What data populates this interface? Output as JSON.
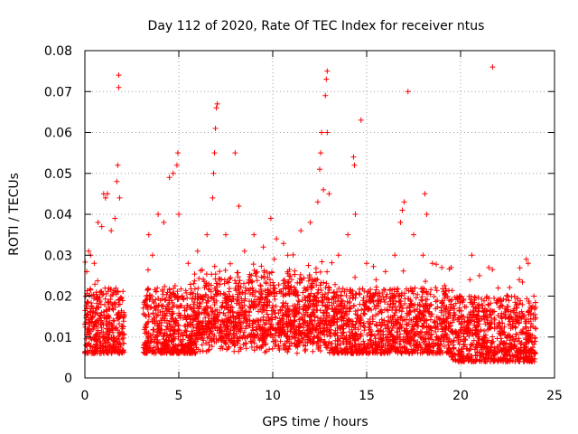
{
  "chart_data": {
    "type": "scatter",
    "title": "Day 112 of 2020, Rate Of TEC Index for receiver ntus",
    "xlabel": "GPS time / hours",
    "ylabel": "ROTI / TECUs",
    "xlim": [
      0,
      25
    ],
    "ylim": [
      0,
      0.08
    ],
    "xticks": [
      0,
      5,
      10,
      15,
      20,
      25
    ],
    "xtick_labels": [
      "0",
      "5",
      "10",
      "15",
      "20",
      "25"
    ],
    "yticks": [
      0,
      0.01,
      0.02,
      0.03,
      0.04,
      0.05,
      0.06,
      0.07,
      0.08
    ],
    "ytick_labels": [
      "0",
      "0.01",
      "0.02",
      "0.03",
      "0.04",
      "0.05",
      "0.06",
      "0.07",
      "0.08"
    ],
    "grid": true,
    "grid_style": "dotted",
    "marker": "+",
    "marker_color": "#ff0000",
    "data_gap_hours": [
      2.1,
      3.1
    ],
    "x_extent": [
      0,
      24
    ],
    "series": [
      {
        "points": [
          [
            0.1,
            0.026
          ],
          [
            0.2,
            0.031
          ],
          [
            0.3,
            0.03
          ],
          [
            0.5,
            0.028
          ],
          [
            0.7,
            0.038
          ],
          [
            0.9,
            0.037
          ],
          [
            1.0,
            0.045
          ],
          [
            1.1,
            0.044
          ],
          [
            1.2,
            0.045
          ],
          [
            1.4,
            0.036
          ],
          [
            1.6,
            0.039
          ],
          [
            1.7,
            0.048
          ],
          [
            1.75,
            0.052
          ],
          [
            1.8,
            0.074
          ],
          [
            1.8,
            0.071
          ],
          [
            1.85,
            0.044
          ],
          [
            3.4,
            0.035
          ],
          [
            3.6,
            0.03
          ],
          [
            3.9,
            0.04
          ],
          [
            4.2,
            0.038
          ],
          [
            4.5,
            0.049
          ],
          [
            4.7,
            0.05
          ],
          [
            4.9,
            0.052
          ],
          [
            4.95,
            0.055
          ],
          [
            5.0,
            0.04
          ],
          [
            5.5,
            0.028
          ],
          [
            6.0,
            0.031
          ],
          [
            6.5,
            0.035
          ],
          [
            6.8,
            0.044
          ],
          [
            6.85,
            0.05
          ],
          [
            6.9,
            0.055
          ],
          [
            6.95,
            0.061
          ],
          [
            7.0,
            0.066
          ],
          [
            7.05,
            0.067
          ],
          [
            7.5,
            0.035
          ],
          [
            8.0,
            0.055
          ],
          [
            8.2,
            0.042
          ],
          [
            8.5,
            0.031
          ],
          [
            9.0,
            0.035
          ],
          [
            9.5,
            0.032
          ],
          [
            9.9,
            0.039
          ],
          [
            10.2,
            0.034
          ],
          [
            10.8,
            0.03
          ],
          [
            11.5,
            0.036
          ],
          [
            12.0,
            0.038
          ],
          [
            12.4,
            0.043
          ],
          [
            12.5,
            0.051
          ],
          [
            12.55,
            0.055
          ],
          [
            12.6,
            0.06
          ],
          [
            12.7,
            0.046
          ],
          [
            12.8,
            0.069
          ],
          [
            12.85,
            0.073
          ],
          [
            12.9,
            0.075
          ],
          [
            12.9,
            0.06
          ],
          [
            13.0,
            0.045
          ],
          [
            13.5,
            0.03
          ],
          [
            14.0,
            0.035
          ],
          [
            14.3,
            0.054
          ],
          [
            14.35,
            0.052
          ],
          [
            14.4,
            0.04
          ],
          [
            14.7,
            0.063
          ],
          [
            15.0,
            0.028
          ],
          [
            15.5,
            0.024
          ],
          [
            16.0,
            0.026
          ],
          [
            16.5,
            0.03
          ],
          [
            16.8,
            0.038
          ],
          [
            16.9,
            0.041
          ],
          [
            17.0,
            0.043
          ],
          [
            17.2,
            0.07
          ],
          [
            17.5,
            0.035
          ],
          [
            18.0,
            0.03
          ],
          [
            18.1,
            0.045
          ],
          [
            18.2,
            0.04
          ],
          [
            18.5,
            0.028
          ],
          [
            19.0,
            0.027
          ],
          [
            19.5,
            0.027
          ],
          [
            20.0,
            0.02
          ],
          [
            20.5,
            0.024
          ],
          [
            20.6,
            0.03
          ],
          [
            21.0,
            0.025
          ],
          [
            21.5,
            0.027
          ],
          [
            21.7,
            0.076
          ],
          [
            22.0,
            0.022
          ],
          [
            22.5,
            0.02
          ],
          [
            23.0,
            0.018
          ],
          [
            23.5,
            0.029
          ],
          [
            23.6,
            0.028
          ],
          [
            23.9,
            0.02
          ],
          [
            24.0,
            0.012
          ]
        ]
      }
    ]
  }
}
